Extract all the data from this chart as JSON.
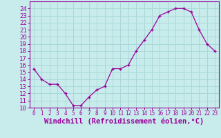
{
  "x": [
    0,
    1,
    2,
    3,
    4,
    5,
    6,
    7,
    8,
    9,
    10,
    11,
    12,
    13,
    14,
    15,
    16,
    17,
    18,
    19,
    20,
    21,
    22,
    23
  ],
  "y": [
    15.5,
    14.0,
    13.3,
    13.3,
    12.0,
    10.3,
    10.3,
    11.5,
    12.5,
    13.0,
    15.5,
    15.5,
    16.0,
    18.0,
    19.5,
    21.0,
    23.0,
    23.5,
    24.0,
    24.0,
    23.5,
    21.0,
    19.0,
    18.0
  ],
  "line_color": "#990099",
  "marker": "+",
  "marker_color": "#990099",
  "background_color": "#c8ecec",
  "grid_color": "#aad8d8",
  "xlabel": "Windchill (Refroidissement éolien,°C)",
  "xlim": [
    -0.5,
    23.5
  ],
  "ylim": [
    10,
    25
  ],
  "yticks": [
    10,
    11,
    12,
    13,
    14,
    15,
    16,
    17,
    18,
    19,
    20,
    21,
    22,
    23,
    24
  ],
  "xticks": [
    0,
    1,
    2,
    3,
    4,
    5,
    6,
    7,
    8,
    9,
    10,
    11,
    12,
    13,
    14,
    15,
    16,
    17,
    18,
    19,
    20,
    21,
    22,
    23
  ],
  "tick_color": "#990099",
  "axis_color": "#990099",
  "font_color": "#990099",
  "ytick_fontsize": 6.5,
  "xtick_fontsize": 5.5,
  "xlabel_fontsize": 7.5
}
